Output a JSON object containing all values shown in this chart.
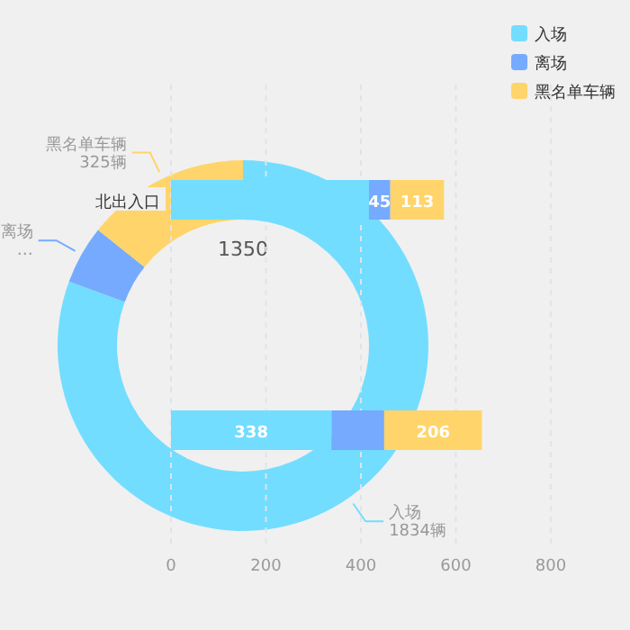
{
  "chart_data": [
    {
      "type": "bar",
      "orientation": "horizontal",
      "stacked": true,
      "categories": [
        "北出入口",
        null
      ],
      "series": [
        {
          "name": "入场",
          "color": "#72ddff",
          "values": [
            417,
            338
          ],
          "value_labels": [
            null,
            "338"
          ]
        },
        {
          "name": "离场",
          "color": "#75aaff",
          "values": [
            45,
            111
          ],
          "value_labels": [
            "45",
            null
          ]
        },
        {
          "name": "黑名单车辆",
          "color": "#ffd46a",
          "values": [
            113,
            206
          ],
          "value_labels": [
            "113",
            "206"
          ]
        }
      ],
      "xlim": [
        0,
        800
      ],
      "xticks": [
        0,
        200,
        400,
        600,
        800
      ],
      "grid": "x",
      "legend": "top right"
    },
    {
      "type": "donut",
      "categories": [
        "入场",
        "离场",
        "黑名单车辆"
      ],
      "values": [
        1834,
        116,
        325
      ],
      "colors": [
        "#72ddff",
        "#75aaff",
        "#ffd46a"
      ],
      "value_labels": [
        "1834辆",
        "…",
        "325辆"
      ],
      "annotations": [
        "1350"
      ]
    }
  ]
}
